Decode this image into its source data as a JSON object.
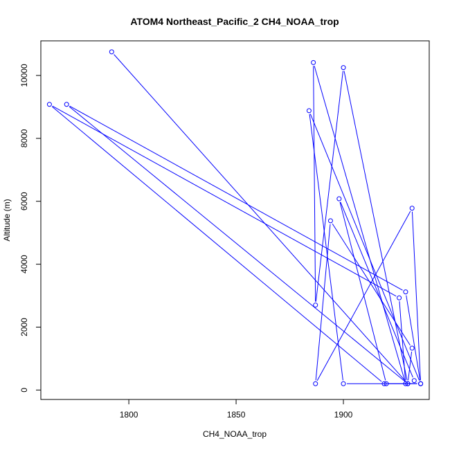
{
  "chart_data": {
    "type": "line",
    "title": "ATOM4 Northeast_Pacific_2 CH4_NOAA_trop",
    "xlabel": "CH4_NOAA_trop",
    "ylabel": "Altitude (m)",
    "xlim": [
      1759,
      1940
    ],
    "ylim": [
      -300,
      11100
    ],
    "xticks": [
      1800,
      1850,
      1900
    ],
    "yticks": [
      0,
      2000,
      4000,
      6000,
      8000,
      10000
    ],
    "grid": false,
    "legend": "none",
    "color": "#0000ff",
    "x": [
      1792,
      1930,
      1771,
      1929,
      1936,
      1919,
      1763,
      1926,
      1929,
      1886,
      1887,
      1900,
      1930,
      1932,
      1894,
      1887,
      1932,
      1936,
      1884,
      1900,
      1936,
      1933,
      1898,
      1920
    ],
    "y": [
      10750,
      200,
      9080,
      3120,
      200,
      200,
      9080,
      2930,
      200,
      10410,
      2700,
      10250,
      200,
      1330,
      5380,
      200,
      5780,
      200,
      8880,
      200,
      200,
      300,
      6080,
      200
    ]
  }
}
